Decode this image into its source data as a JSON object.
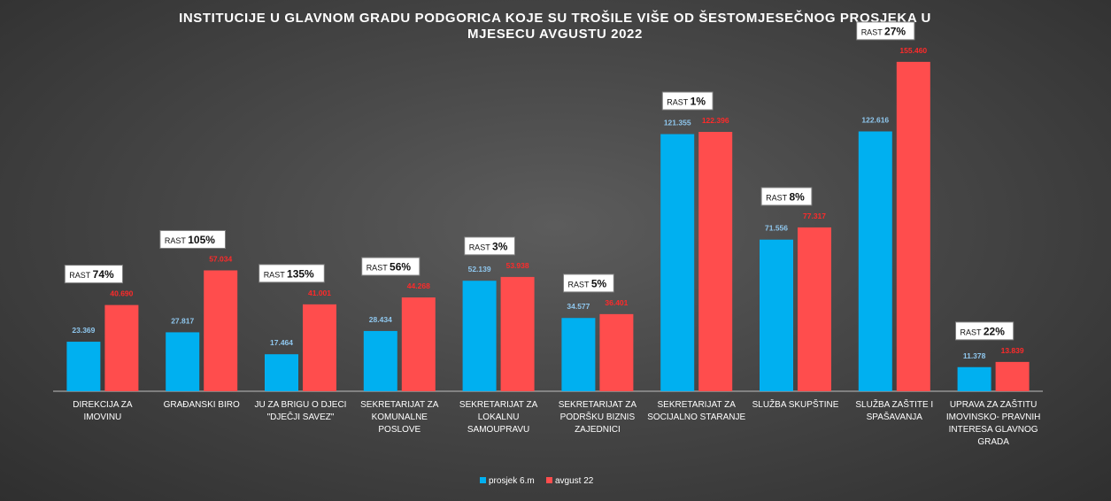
{
  "chart_data": {
    "type": "bar",
    "title_lines": [
      "INSTITUCIJE U GLAVNOM GRADU PODGORICA KOJE SU TROŠILE VIŠE OD ŠESTOMJESEČNOG PROSJEKA U",
      "MJESECU AVGUSTU 2022"
    ],
    "categories": [
      [
        "DIREKCIJA ZA",
        "IMOVINU"
      ],
      [
        "GRAĐANSKI BIRO"
      ],
      [
        "JU ZA BRIGU O DJECI",
        "\"DJEČJI SAVEZ\""
      ],
      [
        "SEKRETARIJAT ZA",
        "KOMUNALNE",
        "POSLOVE"
      ],
      [
        "SEKRETARIJAT ZA",
        "LOKALNU",
        "SAMOUPRAVU"
      ],
      [
        "SEKRETARIJAT ZA",
        "PODRŠKU BIZNIS",
        "ZAJEDNICI"
      ],
      [
        "SEKRETARIJAT ZA",
        "SOCIJALNO STARANJE"
      ],
      [
        "SLUŽBA SKUPŠTINE"
      ],
      [
        "SLUŽBA ZAŠTITE I",
        "SPAŠAVANJA"
      ],
      [
        "UPRAVA ZA ZAŠTITU",
        "IMOVINSKO- PRAVNIH",
        "INTERESA GLAVNOG",
        "GRADA"
      ]
    ],
    "series": [
      {
        "name": "prosjek 6.m",
        "color": "#00b0f0",
        "values": [
          23369,
          27817,
          17464,
          28434,
          52139,
          34577,
          121355,
          71556,
          122616,
          11378
        ],
        "labels": [
          "23.369",
          "27.817",
          "17.464",
          "28.434",
          "52.139",
          "34.577",
          "121.355",
          "71.556",
          "122.616",
          "11.378"
        ]
      },
      {
        "name": "avgust 22",
        "color": "#ff4d4d",
        "values": [
          40690,
          57034,
          41001,
          44268,
          53938,
          36401,
          122396,
          77317,
          155460,
          13839
        ],
        "labels": [
          "40.690",
          "57.034",
          "41.001",
          "44.268",
          "53.938",
          "36.401",
          "122.396",
          "77.317",
          "155.460",
          "13.839"
        ]
      }
    ],
    "growth_label_prefix": "RAST",
    "growth": [
      "74%",
      "105%",
      "135%",
      "56%",
      "3%",
      "5%",
      "1%",
      "8%",
      "27%",
      "22%"
    ],
    "ylim": [
      0,
      160000
    ],
    "grid": false,
    "legend_position": "bottom",
    "axis_color": "#bfbfbf"
  }
}
